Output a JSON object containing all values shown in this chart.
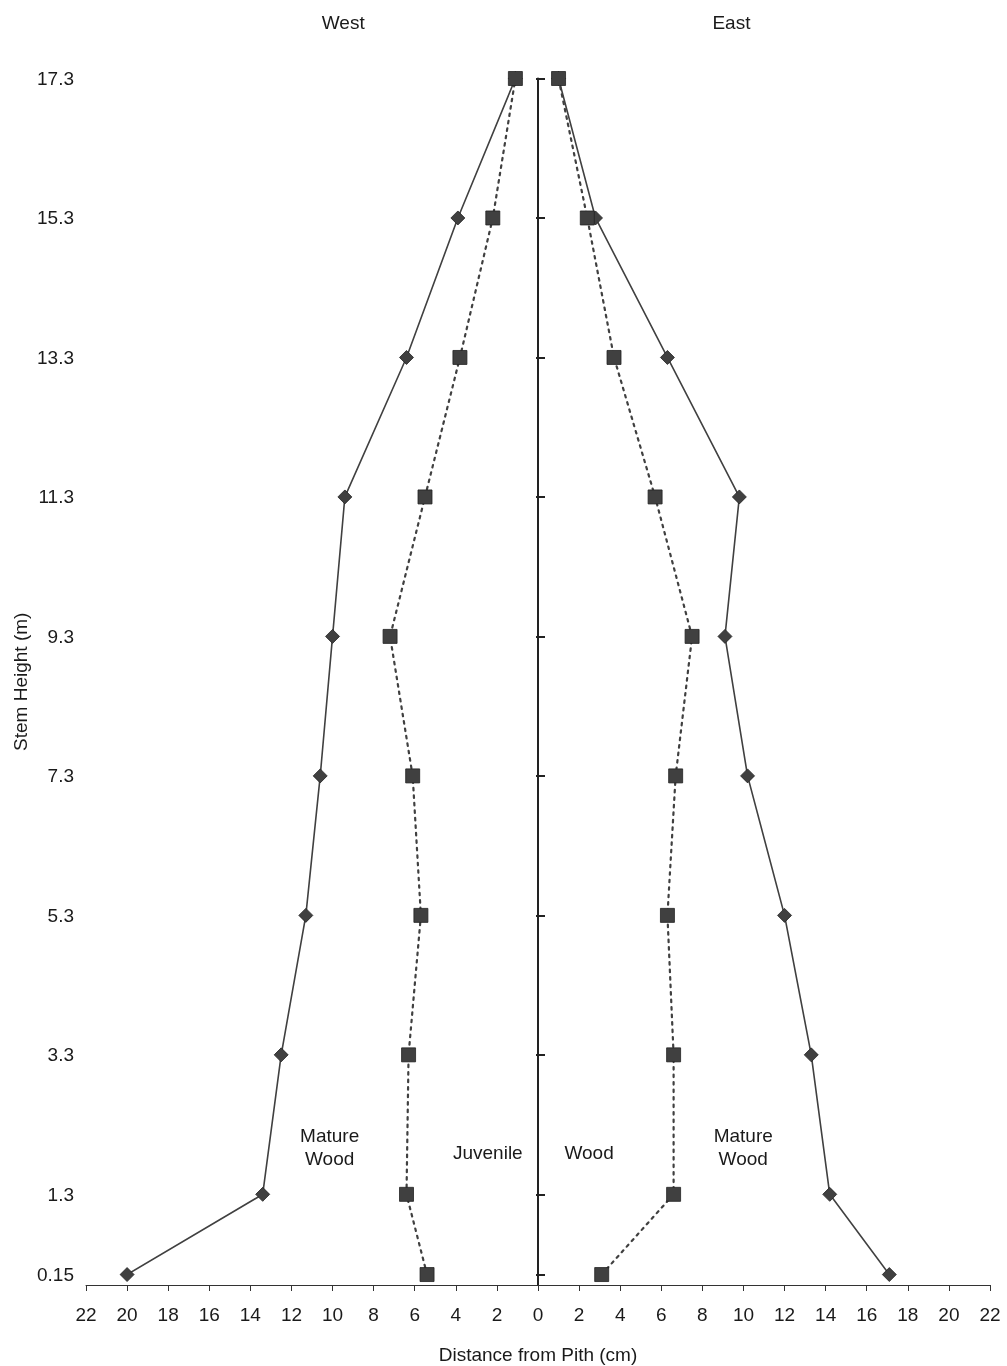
{
  "chart_data": [
    {
      "type": "line",
      "xlabel": "Distance from Pith (cm)",
      "ylabel": "Stem Height (m)",
      "annotations": [
        "West",
        "Mature\nWood",
        "Juvenile"
      ],
      "xlim": [
        22,
        0
      ],
      "xticks": [
        22,
        20,
        18,
        16,
        14,
        12,
        10,
        8,
        6,
        4,
        2,
        0
      ],
      "ylim": [
        0,
        17.3
      ],
      "yticks": [
        0.15,
        1.3,
        3.3,
        5.3,
        7.3,
        9.3,
        11.3,
        13.3,
        15.3,
        17.3
      ],
      "series": [
        {
          "color": "#404040",
          "marker": "diamond",
          "line_style": "solid",
          "x": [
            20.0,
            13.4,
            12.5,
            11.3,
            10.6,
            10.0,
            9.4,
            6.4,
            3.9,
            1.1
          ],
          "values": [
            0.15,
            1.3,
            3.3,
            5.3,
            7.3,
            9.3,
            11.3,
            13.3,
            15.3,
            17.3
          ]
        },
        {
          "color": "#404040",
          "marker": "square",
          "line_style": "dotted",
          "x": [
            5.4,
            6.4,
            6.3,
            5.7,
            6.1,
            7.2,
            5.5,
            3.8,
            2.2,
            1.1
          ],
          "values": [
            0.15,
            1.3,
            3.3,
            5.3,
            7.3,
            9.3,
            11.3,
            13.3,
            15.3,
            17.3
          ]
        }
      ]
    },
    {
      "type": "line",
      "annotations": [
        "East",
        "Wood",
        "Mature\nWood"
      ],
      "xlim": [
        0,
        22
      ],
      "xticks": [
        2,
        4,
        6,
        8,
        10,
        12,
        14,
        16,
        18,
        20,
        22
      ],
      "ylim": [
        0,
        17.3
      ],
      "yticks": [
        0.15,
        1.3,
        3.3,
        5.3,
        7.3,
        9.3,
        11.3,
        13.3,
        15.3,
        17.3
      ],
      "tick_labels": "x",
      "series": [
        {
          "color": "#404040",
          "marker": "diamond",
          "line_style": "solid",
          "x": [
            17.1,
            14.2,
            13.3,
            12.0,
            10.2,
            9.1,
            9.8,
            6.3,
            2.8,
            1.0
          ],
          "values": [
            0.15,
            1.3,
            3.3,
            5.3,
            7.3,
            9.3,
            11.3,
            13.3,
            15.3,
            17.3
          ]
        },
        {
          "color": "#404040",
          "marker": "square",
          "line_style": "dotted",
          "x": [
            3.1,
            6.6,
            6.6,
            6.3,
            6.7,
            7.5,
            5.7,
            3.7,
            2.4,
            1.0
          ],
          "values": [
            0.15,
            1.3,
            3.3,
            5.3,
            7.3,
            9.3,
            11.3,
            13.3,
            15.3,
            17.3
          ]
        }
      ]
    }
  ]
}
